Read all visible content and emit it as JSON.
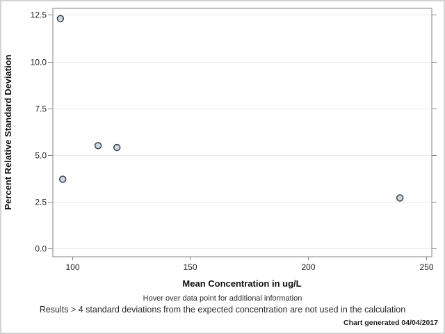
{
  "chart_data": {
    "type": "scatter",
    "title": "",
    "xlabel": "Mean Concentration in ug/L",
    "ylabel": "Percent Relative Standard Deviation",
    "xlim": [
      91.8,
      252.5
    ],
    "ylim": [
      -0.45,
      12.85
    ],
    "grid": "horizontal",
    "legend": "none",
    "x_ticks": [
      {
        "value": 100,
        "label": "100"
      },
      {
        "value": 150,
        "label": "150"
      },
      {
        "value": 200,
        "label": "200"
      },
      {
        "value": 250,
        "label": "250"
      }
    ],
    "y_ticks": [
      {
        "value": 0,
        "label": "0.0"
      },
      {
        "value": 2.5,
        "label": "2.5"
      },
      {
        "value": 5,
        "label": "5.0"
      },
      {
        "value": 7.5,
        "label": "7.5"
      },
      {
        "value": 10,
        "label": "10.0"
      },
      {
        "value": 12.5,
        "label": "12.5"
      }
    ],
    "points": [
      {
        "x": 95,
        "y": 12.3
      },
      {
        "x": 96,
        "y": 3.7
      },
      {
        "x": 111,
        "y": 5.5
      },
      {
        "x": 119,
        "y": 5.4
      },
      {
        "x": 239,
        "y": 2.7
      }
    ]
  },
  "colors": {
    "marker_fill": "#ccd6e4",
    "marker_stroke": "#2f3842",
    "gridline": "#e8e8e8",
    "frame": "#868686",
    "tick": "#868686",
    "outer_border": "#d3d3d3"
  },
  "footer": {
    "line1": "Hover over data point for additional information",
    "line2": "Results > 4 standard deviations from the expected concentration are not used in the calculation",
    "generated": "Chart generated 04/04/2017"
  }
}
